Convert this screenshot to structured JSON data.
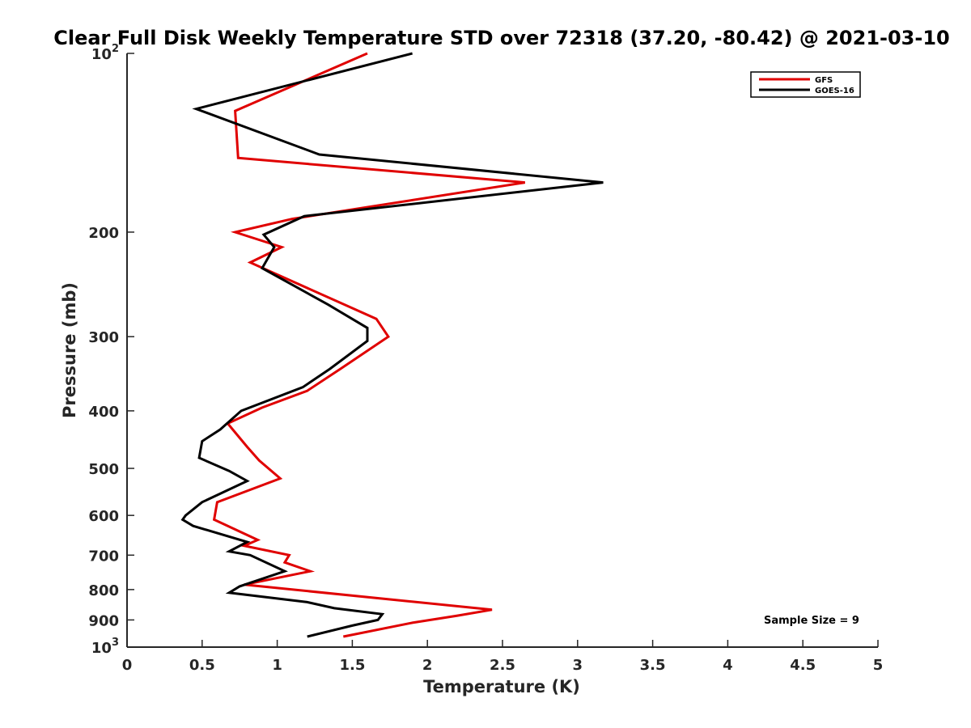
{
  "title": "Clear Full Disk Weekly Temperature STD over 72318 (37.20, -80.42) @ 2021-03-10",
  "chart_data": {
    "type": "line",
    "title": "Clear Full Disk Weekly Temperature STD over 72318 (37.20, -80.42) @ 2021-03-10",
    "xlabel": "Temperature (K)",
    "ylabel": "Pressure (mb)",
    "xlim": [
      0,
      5
    ],
    "ylim": [
      100,
      1000
    ],
    "y_scale": "log",
    "y_reversed": true,
    "grid": false,
    "legend_position": "top-right",
    "x_ticks": [
      "0",
      "0.5",
      "1",
      "1.5",
      "2",
      "2.5",
      "3",
      "3.5",
      "4",
      "4.5",
      "5"
    ],
    "y_ticks": [
      {
        "value": 100,
        "base": "10",
        "exp": "2"
      },
      {
        "value": 200,
        "label": "200"
      },
      {
        "value": 300,
        "label": "300"
      },
      {
        "value": 400,
        "label": "400"
      },
      {
        "value": 500,
        "label": "500"
      },
      {
        "value": 600,
        "label": "600"
      },
      {
        "value": 700,
        "label": "700"
      },
      {
        "value": 800,
        "label": "800"
      },
      {
        "value": 900,
        "label": "900"
      },
      {
        "value": 1000,
        "base": "10",
        "exp": "3"
      }
    ],
    "series": [
      {
        "name": "GFS",
        "color": "#e00000",
        "points": [
          [
            1.6,
            100
          ],
          [
            0.72,
            125
          ],
          [
            0.74,
            150
          ],
          [
            2.65,
            165
          ],
          [
            1.1,
            190
          ],
          [
            0.72,
            200
          ],
          [
            1.03,
            212
          ],
          [
            0.82,
            225
          ],
          [
            1.66,
            280
          ],
          [
            1.74,
            300
          ],
          [
            1.42,
            340
          ],
          [
            1.2,
            370
          ],
          [
            0.9,
            395
          ],
          [
            0.67,
            420
          ],
          [
            0.8,
            460
          ],
          [
            0.88,
            485
          ],
          [
            1.02,
            520
          ],
          [
            0.6,
            570
          ],
          [
            0.58,
            610
          ],
          [
            0.87,
            660
          ],
          [
            0.78,
            675
          ],
          [
            1.08,
            700
          ],
          [
            1.05,
            720
          ],
          [
            1.22,
            745
          ],
          [
            0.78,
            785
          ],
          [
            2.43,
            865
          ],
          [
            2.2,
            885
          ],
          [
            1.9,
            910
          ],
          [
            1.44,
            960
          ]
        ]
      },
      {
        "name": "GOES-16",
        "color": "#000000",
        "points": [
          [
            1.9,
            100
          ],
          [
            0.46,
            124
          ],
          [
            1.28,
            148
          ],
          [
            3.17,
            165
          ],
          [
            1.18,
            188
          ],
          [
            0.91,
            202
          ],
          [
            0.98,
            212
          ],
          [
            0.9,
            230
          ],
          [
            1.34,
            265
          ],
          [
            1.6,
            290
          ],
          [
            1.6,
            305
          ],
          [
            1.35,
            340
          ],
          [
            1.17,
            365
          ],
          [
            0.76,
            400
          ],
          [
            0.62,
            430
          ],
          [
            0.5,
            450
          ],
          [
            0.48,
            480
          ],
          [
            0.68,
            505
          ],
          [
            0.8,
            525
          ],
          [
            0.5,
            570
          ],
          [
            0.39,
            600
          ],
          [
            0.37,
            610
          ],
          [
            0.44,
            625
          ],
          [
            0.8,
            665
          ],
          [
            0.68,
            690
          ],
          [
            0.82,
            700
          ],
          [
            1.05,
            745
          ],
          [
            0.75,
            790
          ],
          [
            0.68,
            810
          ],
          [
            1.2,
            840
          ],
          [
            1.38,
            860
          ],
          [
            1.7,
            880
          ],
          [
            1.67,
            900
          ],
          [
            1.5,
            920
          ],
          [
            1.2,
            960
          ]
        ]
      }
    ],
    "annotations": [
      "Sample Size = 9"
    ]
  }
}
